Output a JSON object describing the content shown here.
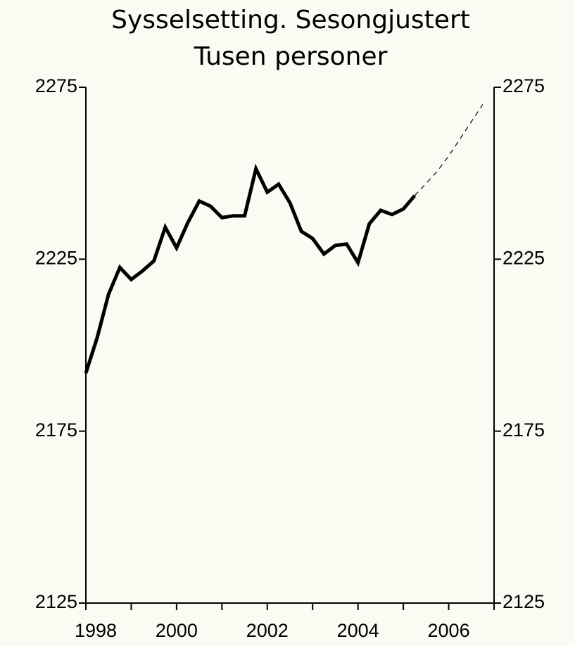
{
  "chart_data": {
    "type": "line",
    "title": "Sysselsetting. Sesongjustert",
    "subtitle": "Tusen personer",
    "x": [
      1998,
      1998.25,
      1998.5,
      1998.75,
      1999,
      1999.25,
      1999.5,
      1999.75,
      2000,
      2000.25,
      2000.5,
      2000.75,
      2001,
      2001.25,
      2001.5,
      2001.75,
      2002,
      2002.25,
      2002.5,
      2002.75,
      2003,
      2003.25,
      2003.5,
      2003.75,
      2004,
      2004.25,
      2004.5,
      2004.75,
      2005,
      2005.25,
      2005.5,
      2005.75,
      2006,
      2006.25,
      2006.5,
      2006.75
    ],
    "series": [
      {
        "color": "#000000",
        "dashed": false,
        "values": [
          2191.9,
          2202.2,
          2214.8,
          2222.6,
          2219.1,
          2221.6,
          2224.5,
          2234.3,
          2228.3,
          2235.7,
          2241.9,
          2240.4,
          2237.1,
          2237.6,
          2237.6,
          2251.3,
          2244.5,
          2246.8,
          2241.4,
          2233.1,
          2231.0,
          2226.5,
          2229.0,
          2229.4,
          2224.0,
          2235.3,
          2239.2,
          2238.0,
          2239.6,
          2243.5,
          null,
          null,
          null,
          null,
          null,
          null
        ]
      },
      {
        "color": "#000000",
        "dashed": true,
        "values": [
          null,
          null,
          null,
          null,
          null,
          null,
          null,
          null,
          null,
          null,
          null,
          null,
          null,
          null,
          null,
          null,
          null,
          null,
          null,
          null,
          null,
          null,
          null,
          null,
          null,
          null,
          null,
          null,
          null,
          2243.5,
          2247,
          2250.6,
          2255,
          2260,
          2265,
          2270
        ]
      }
    ],
    "xlim": [
      1998,
      2007
    ],
    "xticks": [
      1998,
      2000,
      2002,
      2004,
      2006
    ],
    "xminor_ticks": [
      1999,
      2001,
      2003,
      2005,
      2007
    ],
    "ylim": [
      2125,
      2275
    ],
    "yticks": [
      2125,
      2175,
      2225,
      2275
    ],
    "y2lim": [
      2125,
      2275
    ],
    "y2ticks": [
      2125,
      2175,
      2225,
      2275
    ]
  }
}
